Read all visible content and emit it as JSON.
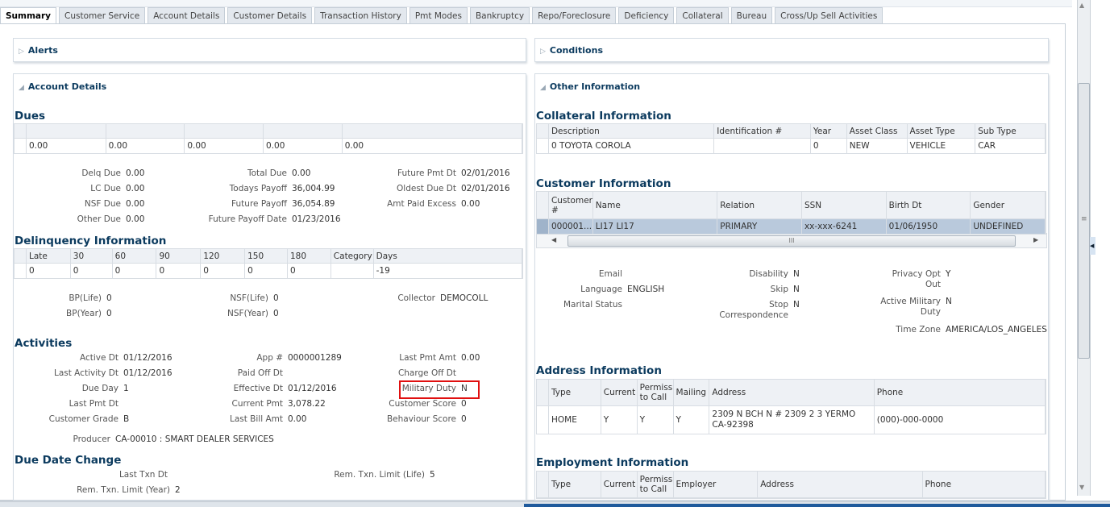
{
  "tabs": [
    "Summary",
    "Customer Service",
    "Account Details",
    "Customer Details",
    "Transaction History",
    "Pmt Modes",
    "Bankruptcy",
    "Repo/Foreclosure",
    "Deficiency",
    "Collateral",
    "Bureau",
    "Cross/Up Sell Activities"
  ],
  "active_tab": "Summary",
  "panels": {
    "alerts": "Alerts",
    "conditions": "Conditions",
    "account_details": "Account Details",
    "other_information": "Other Information"
  },
  "account": {
    "dues_heading": "Dues",
    "dues_table": {
      "headers": [
        "",
        "",
        "",
        "",
        ""
      ],
      "rows": [
        [
          "0.00",
          "0.00",
          "0.00",
          "0.00",
          "0.00"
        ]
      ]
    },
    "dues_fields": [
      [
        {
          "label": "Delq Due",
          "value": "0.00"
        },
        {
          "label": "LC Due",
          "value": "0.00"
        },
        {
          "label": "NSF Due",
          "value": "0.00"
        },
        {
          "label": "Other Due",
          "value": "0.00"
        }
      ],
      [
        {
          "label": "Total Due",
          "value": "0.00"
        },
        {
          "label": "Todays Payoff",
          "value": "36,004.99"
        },
        {
          "label": "Future Payoff",
          "value": "36,054.89"
        },
        {
          "label": "Future Payoff Date",
          "value": "01/23/2016"
        }
      ],
      [
        {
          "label": "Future Pmt Dt",
          "value": "02/01/2016"
        },
        {
          "label": "Oldest Due Dt",
          "value": "02/01/2016"
        },
        {
          "label": "Amt Paid Excess",
          "value": "0.00"
        }
      ]
    ],
    "delinquency_heading": "Delinquency Information",
    "delinquency_table": {
      "headers": [
        "Late",
        "30",
        "60",
        "90",
        "120",
        "150",
        "180",
        "Category",
        "Days"
      ],
      "rows": [
        [
          "0",
          "0",
          "0",
          "0",
          "0",
          "0",
          "0",
          "",
          "-19"
        ]
      ]
    },
    "bp_fields": [
      [
        {
          "label": "BP(Life)",
          "value": "0"
        },
        {
          "label": "BP(Year)",
          "value": "0"
        }
      ],
      [
        {
          "label": "NSF(Life)",
          "value": "0"
        },
        {
          "label": "NSF(Year)",
          "value": "0"
        }
      ],
      [
        {
          "label": "Collector",
          "value": "DEMOCOLL"
        }
      ]
    ],
    "activities_heading": "Activities",
    "activities_fields": [
      [
        {
          "label": "Active Dt",
          "value": "01/12/2016"
        },
        {
          "label": "Last Activity Dt",
          "value": "01/12/2016"
        },
        {
          "label": "Due Day",
          "value": "1"
        },
        {
          "label": "Last Pmt Dt",
          "value": ""
        },
        {
          "label": "Customer Grade",
          "value": "B"
        }
      ],
      [
        {
          "label": "App #",
          "value": "0000001289"
        },
        {
          "label": "Paid Off Dt",
          "value": ""
        },
        {
          "label": "Effective Dt",
          "value": "01/12/2016"
        },
        {
          "label": "Current Pmt",
          "value": "3,078.22"
        },
        {
          "label": "Last Bill Amt",
          "value": "0.00"
        }
      ],
      [
        {
          "label": "Last Pmt Amt",
          "value": "0.00"
        },
        {
          "label": "Charge Off Dt",
          "value": ""
        },
        {
          "label": "Military Duty",
          "value": "N"
        },
        {
          "label": "Customer Score",
          "value": "0"
        },
        {
          "label": "Behaviour Score",
          "value": "0"
        }
      ]
    ],
    "producer": {
      "label": "Producer",
      "value": "CA-00010 : SMART DEALER SERVICES"
    },
    "due_date_heading": "Due Date Change",
    "due_date_fields": {
      "last_txn": {
        "label": "Last Txn Dt",
        "value": ""
      },
      "limit_life": {
        "label": "Rem. Txn. Limit (Life)",
        "value": "5"
      },
      "limit_year": {
        "label": "Rem. Txn. Limit (Year)",
        "value": "2"
      }
    },
    "highlight_color": "#e01010"
  },
  "other": {
    "collateral_heading": "Collateral Information",
    "collateral_table": {
      "headers": [
        "Description",
        "Identification #",
        "Year",
        "Asset Class",
        "Asset Type",
        "Sub Type"
      ],
      "rows": [
        [
          "0 TOYOTA COROLA",
          "",
          "0",
          "NEW",
          "VEHICLE",
          "CAR"
        ]
      ]
    },
    "customer_heading": "Customer Information",
    "customer_table": {
      "headers": [
        "Customer #",
        "Name",
        "Relation",
        "SSN",
        "Birth Dt",
        "Gender"
      ],
      "rows": [
        [
          "000001...",
          "LI17 LI17",
          "PRIMARY",
          "xx-xxx-6241",
          "01/06/1950",
          "UNDEFINED"
        ]
      ]
    },
    "customer_fields": [
      [
        {
          "label": "Email",
          "value": ""
        },
        {
          "label": "Language",
          "value": "ENGLISH"
        },
        {
          "label": "Marital Status",
          "value": ""
        }
      ],
      [
        {
          "label": "Disability",
          "value": "N"
        },
        {
          "label": "Skip",
          "value": "N"
        },
        {
          "label": "Stop Correspondence",
          "value": "N"
        }
      ],
      [
        {
          "label": "Privacy Opt Out",
          "value": "Y"
        },
        {
          "label": "Active Military Duty",
          "value": "N"
        },
        {
          "label": "Time Zone",
          "value": "AMERICA/LOS_ANGELES"
        }
      ]
    ],
    "address_heading": "Address Information",
    "address_table": {
      "headers": [
        "Type",
        "Current",
        "Permission to Call",
        "Mailing",
        "Address",
        "Phone"
      ],
      "rows": [
        [
          "HOME",
          "Y",
          "Y",
          "Y",
          "2309 N BCH N # 2309 2 3 YERMO CA-92398",
          "(000)-000-0000"
        ]
      ]
    },
    "employment_heading": "Employment Information",
    "employment_table": {
      "headers": [
        "Type",
        "Current",
        "Permission to Call",
        "Employer",
        "Address",
        "Phone"
      ],
      "rows": []
    }
  },
  "colors": {
    "heading": "#0b3a5e",
    "selected_row": "#b9c9dc",
    "tab_bg": "#e3e8ee"
  }
}
